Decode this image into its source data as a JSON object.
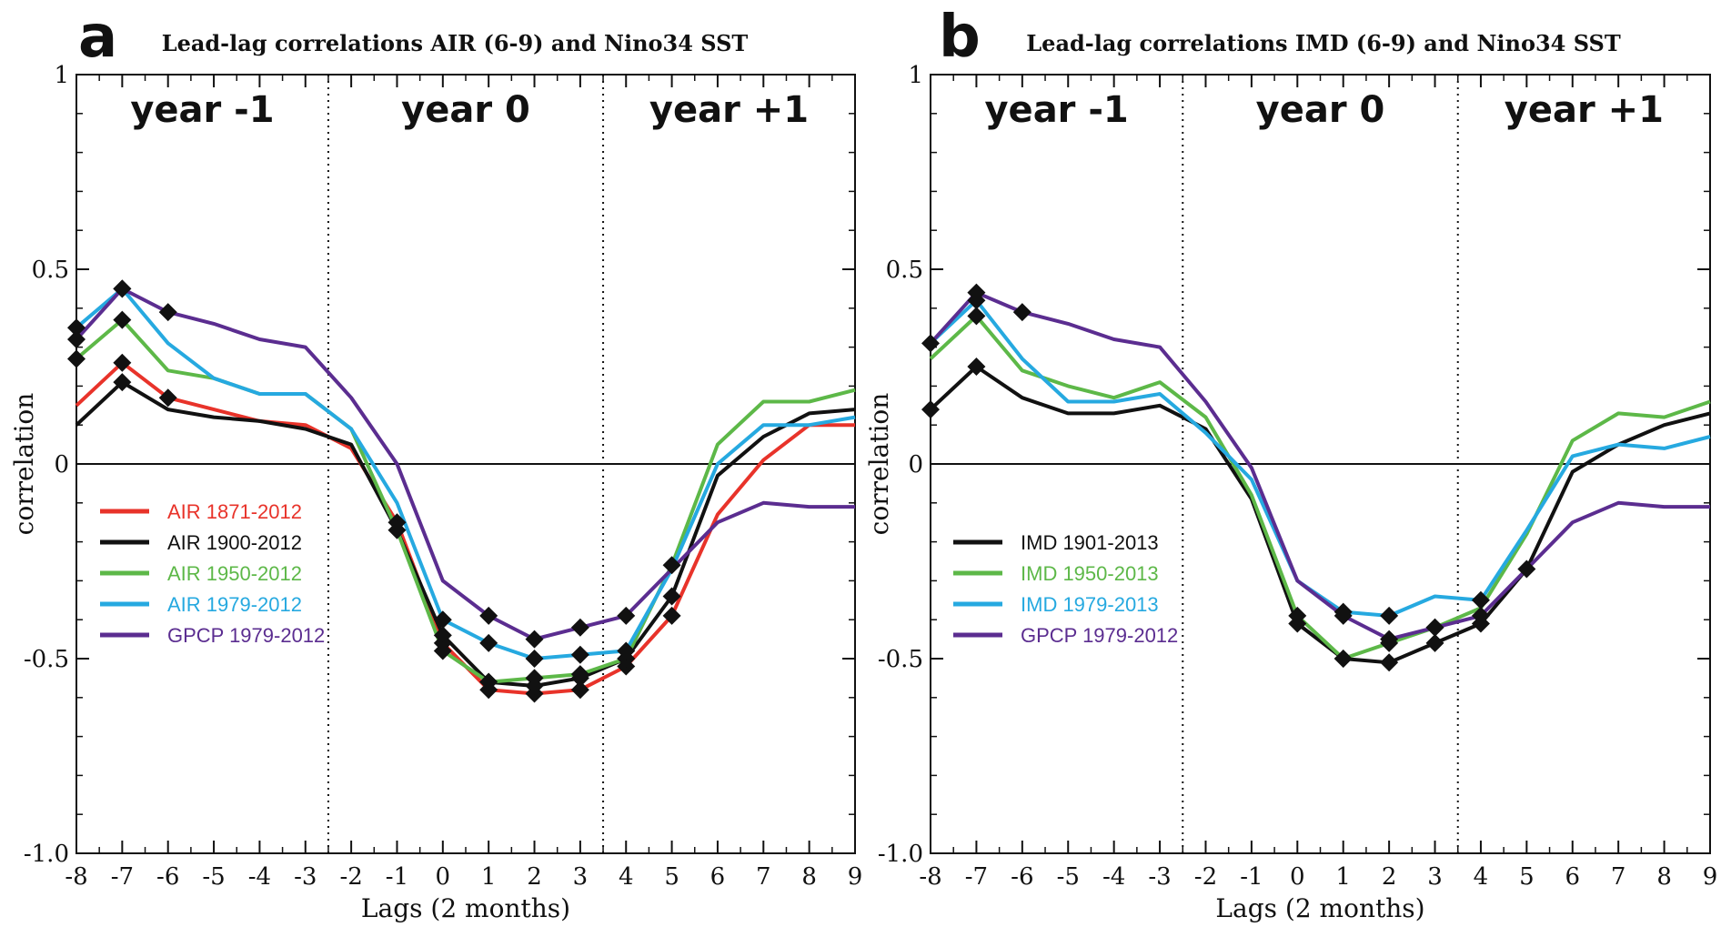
{
  "chart_data": [
    {
      "type": "line",
      "panel": "a",
      "title": "Lead-lag correlations AIR (6-9)  and Nino34 SST",
      "xlabel": "Lags (2 months)",
      "ylabel": "correlation",
      "xlim": [
        -8,
        9
      ],
      "ylim": [
        -1.0,
        1.0
      ],
      "x_ticks": [
        -8,
        -7,
        -6,
        -5,
        -4,
        -3,
        -2,
        -1,
        0,
        1,
        2,
        3,
        4,
        5,
        6,
        7,
        8,
        9
      ],
      "y_ticks": [
        1,
        0.5,
        0,
        -0.5,
        -1.0
      ],
      "y_tick_labels": [
        "1",
        "0.5",
        "0",
        "-0.5",
        "-1.0"
      ],
      "regions": [
        {
          "label": "year -1",
          "x_start": -8,
          "x_end": -2.5
        },
        {
          "label": "year 0",
          "x_start": -2.5,
          "x_end": 3.5
        },
        {
          "label": "year +1",
          "x_start": 3.5,
          "x_end": 9
        }
      ],
      "dividers": [
        -2.5,
        3.5
      ],
      "grid": false,
      "legend_position": "left-middle",
      "x": [
        -8,
        -7,
        -6,
        -5,
        -4,
        -3,
        -2,
        -1,
        0,
        1,
        2,
        3,
        4,
        5,
        6,
        7,
        8,
        9
      ],
      "series": [
        {
          "name": "AIR 1871-2012",
          "color": "#e8332a",
          "values": [
            0.15,
            0.26,
            0.17,
            0.14,
            0.11,
            0.1,
            0.04,
            -0.15,
            -0.46,
            -0.58,
            -0.59,
            -0.58,
            -0.52,
            -0.39,
            -0.13,
            0.01,
            0.1,
            0.1
          ],
          "markers": [
            1,
            2,
            7,
            8,
            9,
            10,
            11,
            12,
            13
          ]
        },
        {
          "name": "AIR 1900-2012",
          "color": "#111111",
          "values": [
            0.1,
            0.21,
            0.14,
            0.12,
            0.11,
            0.09,
            0.05,
            -0.17,
            -0.44,
            -0.56,
            -0.57,
            -0.55,
            -0.5,
            -0.34,
            -0.03,
            0.07,
            0.13,
            0.14
          ],
          "markers": [
            1,
            7,
            8,
            9,
            10,
            11,
            12,
            13
          ]
        },
        {
          "name": "AIR 1950-2012",
          "color": "#5db848",
          "values": [
            0.27,
            0.37,
            0.24,
            0.22,
            0.18,
            0.18,
            0.09,
            -0.17,
            -0.48,
            -0.56,
            -0.55,
            -0.54,
            -0.5,
            -0.26,
            0.05,
            0.16,
            0.16,
            0.19
          ],
          "markers": [
            0,
            1,
            8,
            9,
            10,
            11,
            12,
            13
          ]
        },
        {
          "name": "AIR 1979-2012",
          "color": "#26a9e0",
          "values": [
            0.35,
            0.45,
            0.31,
            0.22,
            0.18,
            0.18,
            0.09,
            -0.1,
            -0.4,
            -0.46,
            -0.5,
            -0.49,
            -0.48,
            -0.27,
            0.0,
            0.1,
            0.1,
            0.12
          ],
          "markers": [
            0,
            1,
            8,
            9,
            10,
            11,
            12
          ]
        },
        {
          "name": "GPCP 1979-2012",
          "color": "#5b2d90",
          "values": [
            0.32,
            0.45,
            0.39,
            0.36,
            0.32,
            0.3,
            0.17,
            0.0,
            -0.3,
            -0.39,
            -0.45,
            -0.42,
            -0.39,
            -0.27,
            -0.15,
            -0.1,
            -0.11,
            -0.11
          ],
          "markers": [
            0,
            1,
            2,
            9,
            10,
            11,
            12
          ]
        }
      ]
    },
    {
      "type": "line",
      "panel": "b",
      "title": "Lead-lag correlations IMD (6-9)  and Nino34 SST",
      "xlabel": "Lags (2 months)",
      "ylabel": "correlation",
      "xlim": [
        -8,
        9
      ],
      "ylim": [
        -1.0,
        1.0
      ],
      "x_ticks": [
        -8,
        -7,
        -6,
        -5,
        -4,
        -3,
        -2,
        -1,
        0,
        1,
        2,
        3,
        4,
        5,
        6,
        7,
        8,
        9
      ],
      "y_ticks": [
        1,
        0.5,
        0,
        -0.5,
        -1.0
      ],
      "y_tick_labels": [
        "1",
        "0.5",
        "0",
        "-0.5",
        "-1.0"
      ],
      "regions": [
        {
          "label": "year -1",
          "x_start": -8,
          "x_end": -2.5
        },
        {
          "label": "year 0",
          "x_start": -2.5,
          "x_end": 3.5
        },
        {
          "label": "year +1",
          "x_start": 3.5,
          "x_end": 9
        }
      ],
      "dividers": [
        -2.5,
        3.5
      ],
      "grid": false,
      "legend_position": "left-middle",
      "x": [
        -8,
        -7,
        -6,
        -5,
        -4,
        -3,
        -2,
        -1,
        0,
        1,
        2,
        3,
        4,
        5,
        6,
        7,
        8,
        9
      ],
      "series": [
        {
          "name": "IMD 1901-2013",
          "color": "#111111",
          "values": [
            0.14,
            0.25,
            0.17,
            0.13,
            0.13,
            0.15,
            0.09,
            -0.09,
            -0.41,
            -0.5,
            -0.51,
            -0.46,
            -0.41,
            -0.27,
            -0.02,
            0.05,
            0.1,
            0.13
          ],
          "markers": [
            0,
            1,
            8,
            9,
            10,
            11,
            12
          ]
        },
        {
          "name": "IMD 1950-2013",
          "color": "#5db848",
          "values": [
            0.27,
            0.38,
            0.24,
            0.2,
            0.17,
            0.21,
            0.12,
            -0.08,
            -0.39,
            -0.5,
            -0.46,
            -0.42,
            -0.37,
            -0.18,
            0.06,
            0.13,
            0.12,
            0.16
          ],
          "markers": [
            1,
            8,
            9,
            10,
            11
          ]
        },
        {
          "name": "IMD 1979-2013",
          "color": "#26a9e0",
          "values": [
            0.31,
            0.42,
            0.27,
            0.16,
            0.16,
            0.18,
            0.08,
            -0.04,
            -0.3,
            -0.38,
            -0.39,
            -0.34,
            -0.35,
            -0.17,
            0.02,
            0.05,
            0.04,
            0.07
          ],
          "markers": [
            1,
            9,
            10,
            12
          ]
        },
        {
          "name": "GPCP 1979-2012",
          "color": "#5b2d90",
          "values": [
            0.31,
            0.44,
            0.39,
            0.36,
            0.32,
            0.3,
            0.16,
            -0.01,
            -0.3,
            -0.39,
            -0.45,
            -0.42,
            -0.39,
            -0.27,
            -0.15,
            -0.1,
            -0.11,
            -0.11
          ],
          "markers": [
            0,
            1,
            2,
            9,
            10,
            11,
            12,
            13
          ]
        }
      ]
    }
  ]
}
